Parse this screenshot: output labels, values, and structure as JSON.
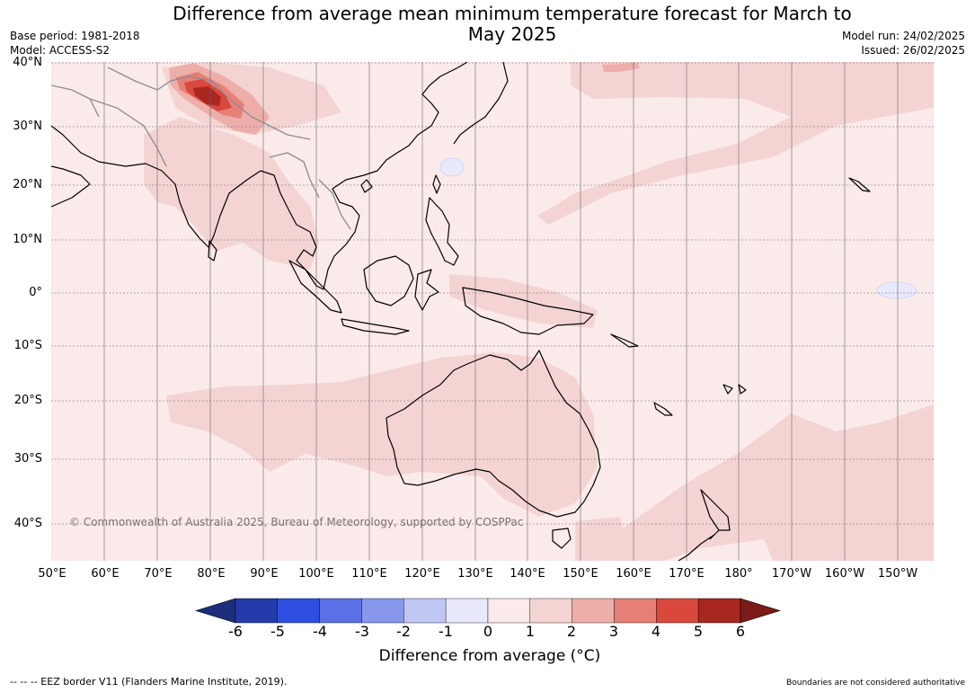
{
  "title": "Difference from average mean minimum temperature forecast for March to May 2025",
  "meta_left": {
    "base_period": "Base period: 1981-2018",
    "model": "Model: ACCESS-S2"
  },
  "meta_right": {
    "model_run": "Model run: 24/02/2025",
    "issued": "Issued: 26/02/2025"
  },
  "map": {
    "lon_labels": [
      "50°E",
      "60°E",
      "70°E",
      "80°E",
      "90°E",
      "100°E",
      "110°E",
      "120°E",
      "130°E",
      "140°E",
      "150°E",
      "160°E",
      "170°E",
      "180°",
      "170°W",
      "160°W",
      "150°W"
    ],
    "lat_labels": [
      "40°N",
      "30°N",
      "20°N",
      "10°N",
      "0°",
      "10°S",
      "20°S",
      "30°S",
      "40°S"
    ],
    "copyright": "© Commonwealth of Australia 2025, Bureau of Meteorology, supported by COSPPac",
    "colors": {
      "land_outline": "#000000",
      "border": "#8c8c8c",
      "grid": "#555555",
      "base_fill": "#fbeaea"
    }
  },
  "colorbar": {
    "ticks": [
      "-6",
      "-5",
      "-4",
      "-3",
      "-2",
      "-1",
      "0",
      "1",
      "2",
      "3",
      "4",
      "5",
      "6"
    ],
    "colors": [
      "#1d2e7c",
      "#243bab",
      "#2f4de0",
      "#5b70e4",
      "#8798ec",
      "#c0c7f3",
      "#e8eafb",
      "#fbeaea",
      "#f4d4d3",
      "#edaeaa",
      "#e68077",
      "#d9483c",
      "#a8271f",
      "#7c1b17"
    ],
    "label": "Difference from average (°C)"
  },
  "footer": {
    "left": "--  --  -- EEZ border V11 (Flanders Marine Institute, 2019).",
    "right": "Boundaries are not considered authoritative"
  }
}
